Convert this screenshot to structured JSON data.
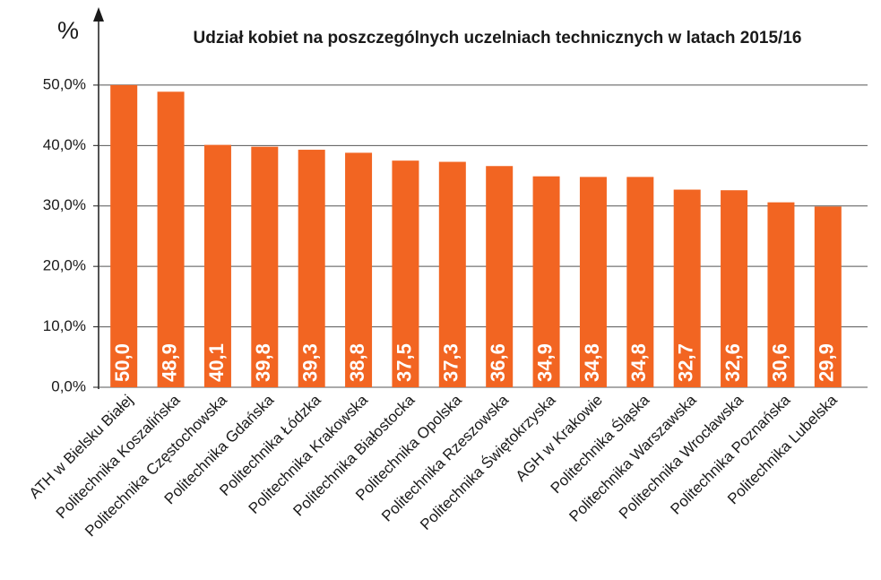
{
  "chart_data": {
    "type": "bar",
    "title": "Udział kobiet na poszczególnych uczelniach technicznych w latach 2015/16",
    "y_label": "%",
    "categories": [
      "ATH w Bielsku Białej",
      "Politechnika Koszalińska",
      "Politechnika Częstochowska",
      "Politechnika Gdańska",
      "Politechnika Łódzka",
      "Politechnika Krakowska",
      "Politechnika Białostocka",
      "Politechnika Opolska",
      "Politechnika Rzeszowska",
      "Politechnika Świętokrzyska",
      "AGH w Krakowie",
      "Politechnika Śląska",
      "Politechnika Warszawska",
      "Politechnika Wrocławska",
      "Politechnika Poznańska",
      "Politechnika Lubelska"
    ],
    "values": [
      50.0,
      48.9,
      40.1,
      39.8,
      39.3,
      38.8,
      37.5,
      37.3,
      36.6,
      34.9,
      34.8,
      34.8,
      32.7,
      32.6,
      30.6,
      29.9
    ],
    "value_labels": [
      "50,0",
      "48,9",
      "40,1",
      "39,8",
      "39,3",
      "38,8",
      "37,5",
      "37,3",
      "36,6",
      "34,9",
      "34,8",
      "34,8",
      "32,7",
      "32,6",
      "30,6",
      "29,9"
    ],
    "color": "#f26522",
    "ylim": [
      0,
      62
    ],
    "yticks": [
      {
        "value": 0,
        "label": "0,0%"
      },
      {
        "value": 10,
        "label": "10,0%"
      },
      {
        "value": 20,
        "label": "20,0%"
      },
      {
        "value": 30,
        "label": "30,0%"
      },
      {
        "value": 40,
        "label": "40,0%"
      },
      {
        "value": 50,
        "label": "50,0%"
      }
    ],
    "grid": true
  }
}
